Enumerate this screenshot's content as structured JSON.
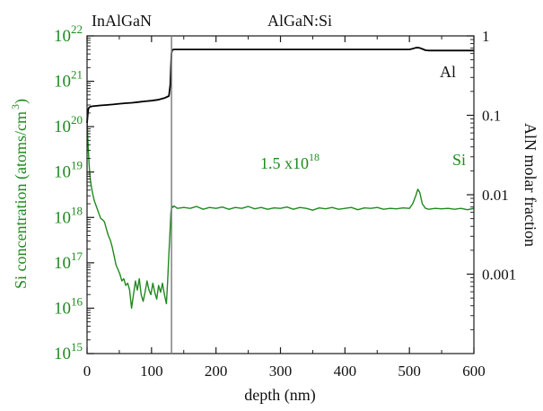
{
  "chart_data": {
    "type": "line",
    "xlabel": "depth (nm)",
    "ylabel_left": "Si concentration (atoms/cm",
    "ylabel_left_sup": "3",
    "ylabel_left_close": ")",
    "ylabel_right": "AlN molar fraction",
    "xlim": [
      0,
      600
    ],
    "ylim_left": [
      1000000000000000.0,
      1e+22
    ],
    "ylim_right": [
      0.0001,
      1
    ],
    "x_scale": "linear",
    "y_scale_left": "log",
    "y_scale_right": "log",
    "x_ticks": [
      "0",
      "100",
      "200",
      "300",
      "400",
      "500",
      "600"
    ],
    "x_tick_values": [
      0,
      100,
      200,
      300,
      400,
      500,
      600
    ],
    "left_ticks": [
      {
        "base": "10",
        "exp": "15",
        "value": 15
      },
      {
        "base": "10",
        "exp": "16",
        "value": 16
      },
      {
        "base": "10",
        "exp": "17",
        "value": 17
      },
      {
        "base": "10",
        "exp": "18",
        "value": 18
      },
      {
        "base": "10",
        "exp": "19",
        "value": 19
      },
      {
        "base": "10",
        "exp": "20",
        "value": 20
      },
      {
        "base": "10",
        "exp": "21",
        "value": 21
      },
      {
        "base": "10",
        "exp": "22",
        "value": 22
      }
    ],
    "right_ticks": [
      {
        "label": "1",
        "value": 1
      },
      {
        "label": "0.1",
        "value": 0.1
      },
      {
        "label": "0.01",
        "value": 0.01
      },
      {
        "label": "0.001",
        "value": 0.001
      }
    ],
    "grid": false,
    "interface_depth_nm": 131,
    "regions": [
      {
        "label": "InAlGaN"
      },
      {
        "label": "AlGaN:Si"
      }
    ],
    "annotations": [
      {
        "label": "Al"
      },
      {
        "label": "Si"
      },
      {
        "base": "1.5 x10",
        "exp": "18"
      }
    ],
    "series": [
      {
        "name": "Si",
        "axis": "left",
        "color": "#1f8a1f",
        "x": [
          0,
          1,
          2,
          3,
          4,
          5,
          7,
          9,
          11,
          13,
          15,
          18,
          21,
          24,
          27,
          30,
          33,
          36,
          39,
          42,
          45,
          48,
          51,
          54,
          57,
          60,
          63,
          66,
          69,
          72,
          75,
          78,
          81,
          84,
          87,
          90,
          93,
          96,
          99,
          102,
          105,
          108,
          111,
          114,
          117,
          120,
          123,
          125,
          127,
          129,
          130,
          131,
          132,
          133,
          135,
          140,
          150,
          160,
          170,
          180,
          190,
          200,
          210,
          220,
          230,
          240,
          250,
          260,
          270,
          280,
          290,
          300,
          310,
          320,
          330,
          340,
          350,
          360,
          370,
          380,
          390,
          400,
          410,
          420,
          430,
          440,
          450,
          460,
          470,
          480,
          490,
          500,
          505,
          510,
          513,
          516,
          520,
          525,
          530,
          540,
          550,
          560,
          570,
          580,
          590,
          600
        ],
        "y": [
          20.2,
          19.8,
          19.5,
          19.2,
          19.0,
          18.85,
          18.65,
          18.5,
          18.38,
          18.3,
          18.22,
          18.1,
          17.98,
          17.95,
          17.9,
          17.75,
          17.6,
          17.5,
          17.35,
          17.15,
          16.95,
          16.85,
          16.75,
          16.6,
          16.65,
          16.5,
          16.55,
          16.4,
          16.0,
          16.3,
          16.6,
          16.4,
          16.65,
          16.3,
          16.15,
          16.35,
          16.6,
          16.4,
          16.3,
          16.55,
          16.35,
          16.2,
          16.5,
          16.35,
          16.55,
          16.3,
          16.1,
          16.6,
          17.2,
          17.8,
          18.1,
          18.2,
          18.25,
          18.22,
          18.25,
          18.2,
          18.22,
          18.2,
          18.24,
          18.18,
          18.22,
          18.2,
          18.23,
          18.18,
          18.22,
          18.2,
          18.24,
          18.19,
          18.22,
          18.18,
          18.21,
          18.2,
          18.23,
          18.18,
          18.22,
          18.2,
          18.16,
          18.21,
          18.19,
          18.22,
          18.18,
          18.2,
          18.22,
          18.17,
          18.21,
          18.2,
          18.22,
          18.18,
          18.2,
          18.19,
          18.21,
          18.2,
          18.3,
          18.48,
          18.62,
          18.55,
          18.3,
          18.2,
          18.18,
          18.2,
          18.19,
          18.2,
          18.18,
          18.2,
          18.17,
          18.2
        ]
      },
      {
        "name": "Al",
        "axis": "right",
        "color": "#000000",
        "x": [
          0,
          1,
          2,
          3,
          5,
          8,
          12,
          20,
          30,
          40,
          50,
          60,
          70,
          80,
          90,
          100,
          110,
          120,
          127,
          129,
          130,
          131,
          132,
          133,
          135,
          140,
          160,
          200,
          250,
          300,
          350,
          400,
          450,
          500,
          505,
          510,
          515,
          520,
          525,
          530,
          550,
          600
        ],
        "y": [
          0.08,
          0.1,
          0.12,
          0.125,
          0.128,
          0.13,
          0.131,
          0.133,
          0.135,
          0.137,
          0.14,
          0.142,
          0.144,
          0.147,
          0.15,
          0.153,
          0.157,
          0.165,
          0.175,
          0.24,
          0.4,
          0.6,
          0.66,
          0.67,
          0.675,
          0.675,
          0.675,
          0.675,
          0.675,
          0.675,
          0.675,
          0.675,
          0.675,
          0.675,
          0.69,
          0.71,
          0.71,
          0.685,
          0.66,
          0.655,
          0.655,
          0.655
        ]
      }
    ]
  }
}
